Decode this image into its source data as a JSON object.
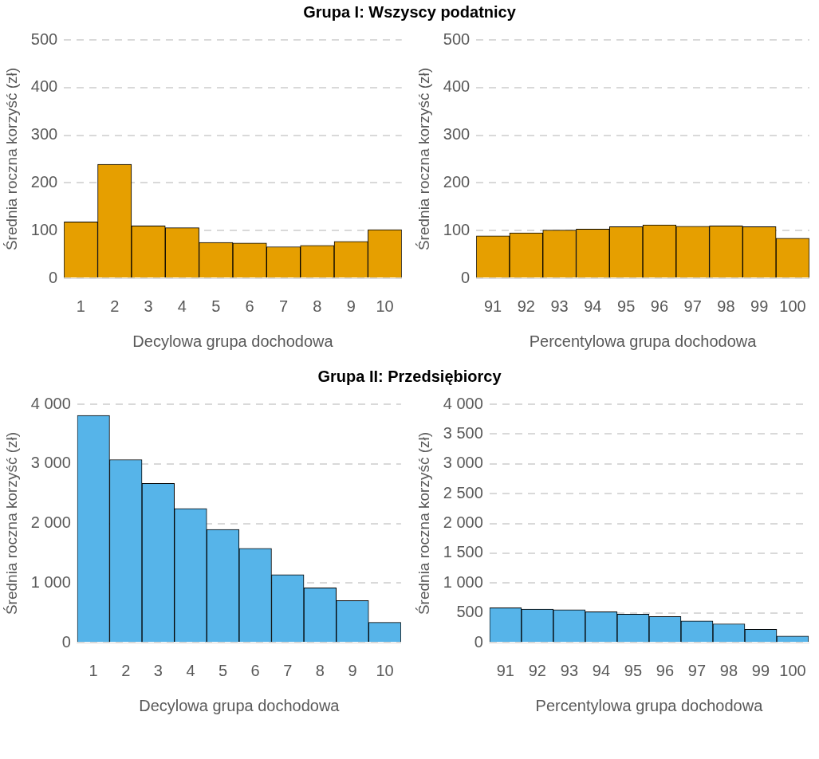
{
  "chart_data": [
    {
      "type": "bar",
      "title": "Grupa I: Wszyscy podatnicy",
      "xlabel": "Decylowa grupa dochodowa",
      "ylabel": "Średnia roczna korzyść (zł)",
      "categories": [
        "1",
        "2",
        "3",
        "4",
        "5",
        "6",
        "7",
        "8",
        "9",
        "10"
      ],
      "values": [
        118,
        239,
        110,
        106,
        75,
        74,
        66,
        69,
        77,
        102
      ],
      "color": "#e69f00",
      "ylim": [
        0,
        500
      ],
      "yticks": [
        0,
        100,
        200,
        300,
        400,
        500
      ],
      "grid": "y"
    },
    {
      "type": "bar",
      "xlabel": "Percentylowa grupa dochodowa",
      "ylabel": "Średnia roczna korzyść (zł)",
      "categories": [
        "91",
        "92",
        "93",
        "94",
        "95",
        "96",
        "97",
        "98",
        "99",
        "100"
      ],
      "values": [
        89,
        95,
        101,
        103,
        108,
        112,
        109,
        110,
        108,
        84
      ],
      "color": "#e69f00",
      "ylim": [
        0,
        500
      ],
      "yticks": [
        0,
        100,
        200,
        300,
        400,
        500
      ],
      "grid": "y"
    },
    {
      "type": "bar",
      "title": "Grupa II: Przedsiębiorcy",
      "xlabel": "Decylowa grupa dochodowa",
      "ylabel": "Średnia roczna korzyść (zł)",
      "categories": [
        "1",
        "2",
        "3",
        "4",
        "5",
        "6",
        "7",
        "8",
        "9",
        "10"
      ],
      "values": [
        3810,
        3070,
        2670,
        2250,
        1900,
        1580,
        1140,
        920,
        705,
        340
      ],
      "color": "#56b4e9",
      "ylim": [
        0,
        4000
      ],
      "yticks": [
        0,
        {
          "value": 1000,
          "label": "1 000"
        },
        {
          "value": 2000,
          "label": "2 000"
        },
        {
          "value": 3000,
          "label": "3 000"
        },
        {
          "value": 4000,
          "label": "4 000"
        }
      ],
      "grid": "y"
    },
    {
      "type": "bar",
      "xlabel": "Percentylowa grupa dochodowa",
      "ylabel": "Średnia roczna korzyść (zł)",
      "categories": [
        "91",
        "92",
        "93",
        "94",
        "95",
        "96",
        "97",
        "98",
        "99",
        "100"
      ],
      "values": [
        583,
        560,
        551,
        519,
        478,
        437,
        364,
        314,
        223,
        109
      ],
      "color": "#56b4e9",
      "ylim": [
        0,
        4000
      ],
      "yticks": [
        0,
        500,
        {
          "value": 1000,
          "label": "1 000"
        },
        {
          "value": 1500,
          "label": "1 500"
        },
        {
          "value": 2000,
          "label": "2 000"
        },
        {
          "value": 2500,
          "label": "2 500"
        },
        {
          "value": 3000,
          "label": "3 000"
        },
        {
          "value": 3500,
          "label": "3 500"
        },
        {
          "value": 4000,
          "label": "4 000"
        }
      ],
      "grid": "y"
    }
  ]
}
